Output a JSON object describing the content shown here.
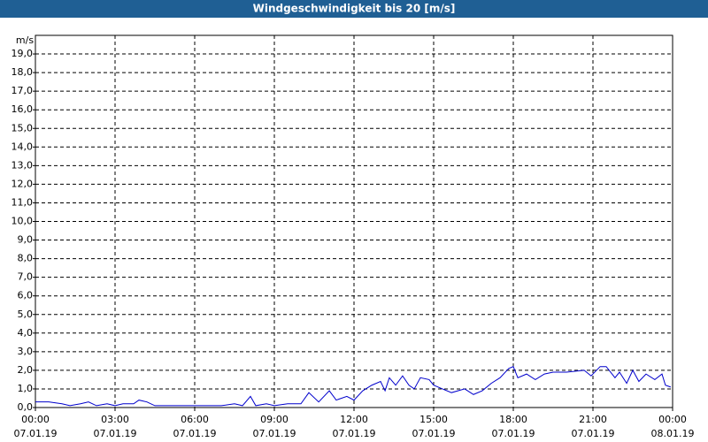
{
  "chart_data": {
    "type": "line",
    "title": "Windgeschwindigkeit bis 20 [m/s]",
    "y_unit": "m/s",
    "xlim": [
      0,
      24
    ],
    "ylim": [
      0,
      20
    ],
    "xticks": [
      {
        "value": 0,
        "label": "00:00",
        "date": "07.01.19"
      },
      {
        "value": 3,
        "label": "03:00",
        "date": "07.01.19"
      },
      {
        "value": 6,
        "label": "06:00",
        "date": "07.01.19"
      },
      {
        "value": 9,
        "label": "09:00",
        "date": "07.01.19"
      },
      {
        "value": 12,
        "label": "12:00",
        "date": "07.01.19"
      },
      {
        "value": 15,
        "label": "15:00",
        "date": "07.01.19"
      },
      {
        "value": 18,
        "label": "18:00",
        "date": "07.01.19"
      },
      {
        "value": 21,
        "label": "21:00",
        "date": "07.01.19"
      },
      {
        "value": 24,
        "label": "00:00",
        "date": "08.01.19"
      }
    ],
    "yticks": [
      {
        "value": 0,
        "label": "0,0"
      },
      {
        "value": 1,
        "label": "1,0"
      },
      {
        "value": 2,
        "label": "2,0"
      },
      {
        "value": 3,
        "label": "3,0"
      },
      {
        "value": 4,
        "label": "4,0"
      },
      {
        "value": 5,
        "label": "5,0"
      },
      {
        "value": 6,
        "label": "6,0"
      },
      {
        "value": 7,
        "label": "7,0"
      },
      {
        "value": 8,
        "label": "8,0"
      },
      {
        "value": 9,
        "label": "9,0"
      },
      {
        "value": 10,
        "label": "10,0"
      },
      {
        "value": 11,
        "label": "11,0"
      },
      {
        "value": 12,
        "label": "12,0"
      },
      {
        "value": 13,
        "label": "13,0"
      },
      {
        "value": 14,
        "label": "14,0"
      },
      {
        "value": 15,
        "label": "15,0"
      },
      {
        "value": 16,
        "label": "16,0"
      },
      {
        "value": 17,
        "label": "17,0"
      },
      {
        "value": 18,
        "label": "18,0"
      },
      {
        "value": 19,
        "label": "19,0"
      }
    ],
    "grid": true,
    "color": "#0000cc",
    "x": [
      0,
      0.5,
      1.0,
      1.3,
      1.7,
      2.0,
      2.3,
      2.7,
      3.0,
      3.3,
      3.7,
      3.9,
      4.2,
      4.5,
      5.0,
      6.0,
      7.0,
      7.5,
      7.8,
      8.1,
      8.3,
      8.7,
      9.0,
      9.5,
      10.0,
      10.3,
      10.67,
      11.07,
      11.33,
      11.73,
      12.0,
      12.33,
      12.67,
      13.0,
      13.17,
      13.33,
      13.57,
      13.83,
      14.07,
      14.27,
      14.5,
      14.83,
      15.0,
      15.33,
      15.67,
      16.17,
      16.5,
      16.83,
      17.17,
      17.5,
      17.83,
      18.0,
      18.17,
      18.5,
      18.83,
      19.17,
      19.5,
      20.0,
      20.67,
      20.93,
      21.27,
      21.5,
      21.83,
      22.0,
      22.27,
      22.5,
      22.73,
      23.0,
      23.33,
      23.6,
      23.73,
      23.93
    ],
    "values": [
      0.3,
      0.3,
      0.2,
      0.1,
      0.2,
      0.3,
      0.1,
      0.2,
      0.1,
      0.2,
      0.2,
      0.4,
      0.3,
      0.1,
      0.1,
      0.1,
      0.1,
      0.2,
      0.1,
      0.6,
      0.1,
      0.2,
      0.1,
      0.2,
      0.2,
      0.8,
      0.3,
      0.9,
      0.4,
      0.6,
      0.4,
      0.9,
      1.2,
      1.4,
      0.9,
      1.6,
      1.2,
      1.7,
      1.2,
      1.0,
      1.6,
      1.5,
      1.2,
      1.0,
      0.8,
      1.0,
      0.7,
      0.9,
      1.3,
      1.6,
      2.1,
      2.2,
      1.6,
      1.8,
      1.5,
      1.8,
      1.9,
      1.9,
      2.0,
      1.7,
      2.2,
      2.2,
      1.6,
      1.9,
      1.3,
      2.0,
      1.4,
      1.8,
      1.5,
      1.8,
      1.2,
      1.1
    ]
  }
}
